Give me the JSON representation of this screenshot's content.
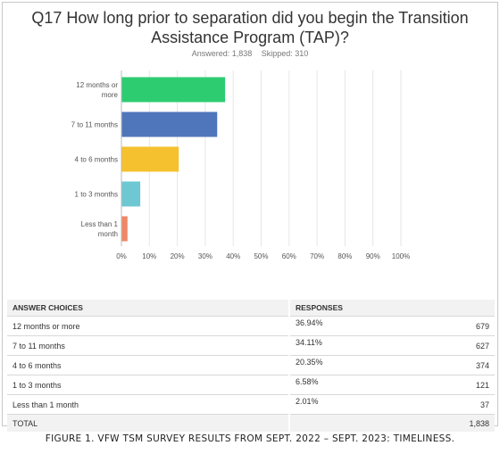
{
  "title": "Q17 How long prior to separation did you begin the Transition Assistance Program (TAP)?",
  "answered": "Answered: 1,838",
  "skipped": "Skipped: 310",
  "chart_data": {
    "type": "bar",
    "orientation": "horizontal",
    "categories": [
      "12 months or more",
      "7 to 11 months",
      "4 to 6 months",
      "1 to 3 months",
      "Less than 1 month"
    ],
    "category_lines": [
      [
        "12 months or",
        "more"
      ],
      [
        "7 to 11 months"
      ],
      [
        "4 to 6 months"
      ],
      [
        "1 to 3 months"
      ],
      [
        "Less than 1",
        "month"
      ]
    ],
    "values": [
      36.94,
      34.11,
      20.35,
      6.58,
      2.01
    ],
    "colors": [
      "#2ecc71",
      "#4f76bb",
      "#f6c12e",
      "#6dc8d3",
      "#ef8866"
    ],
    "xticks": [
      "0%",
      "10%",
      "20%",
      "30%",
      "40%",
      "50%",
      "60%",
      "70%",
      "80%",
      "90%",
      "100%"
    ],
    "xlim": [
      0,
      100
    ],
    "grid": true
  },
  "table": {
    "header": [
      "ANSWER CHOICES",
      "RESPONSES"
    ],
    "rows": [
      {
        "label": "12 months or more",
        "pct": "36.94%",
        "count": "679"
      },
      {
        "label": "7 to 11 months",
        "pct": "34.11%",
        "count": "627"
      },
      {
        "label": "4 to 6 months",
        "pct": "20.35%",
        "count": "374"
      },
      {
        "label": "1 to 3 months",
        "pct": "6.58%",
        "count": "121"
      },
      {
        "label": "Less than 1 month",
        "pct": "2.01%",
        "count": "37"
      }
    ],
    "total_label": "TOTAL",
    "total_count": "1,838"
  },
  "caption": "FIGURE 1. VFW TSM SURVEY RESULTS FROM SEPT. 2022 – SEPT. 2023: TIMELINESS."
}
